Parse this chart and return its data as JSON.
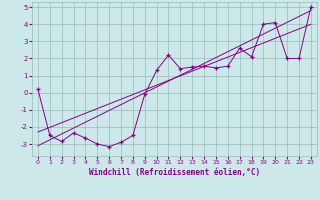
{
  "xlabel": "Windchill (Refroidissement éolien,°C)",
  "xlim": [
    -0.5,
    23.5
  ],
  "ylim": [
    -3.7,
    5.3
  ],
  "yticks": [
    -3,
    -2,
    -1,
    0,
    1,
    2,
    3,
    4,
    5
  ],
  "xticks": [
    0,
    1,
    2,
    3,
    4,
    5,
    6,
    7,
    8,
    9,
    10,
    11,
    12,
    13,
    14,
    15,
    16,
    17,
    18,
    19,
    20,
    21,
    22,
    23
  ],
  "background_color": "#cce8e8",
  "line_color": "#880088",
  "grid_color": "#99bbbb",
  "line1_x": [
    0,
    1,
    2,
    3,
    4,
    5,
    6,
    7,
    8,
    9,
    10,
    11,
    12,
    13,
    14,
    15,
    16,
    17,
    18,
    19,
    20,
    21,
    22,
    23
  ],
  "line1_y": [
    0.2,
    -2.5,
    -2.85,
    -2.35,
    -2.65,
    -3.0,
    -3.15,
    -2.9,
    -2.5,
    -0.1,
    1.3,
    2.2,
    1.4,
    1.5,
    1.55,
    1.45,
    1.55,
    2.6,
    2.1,
    4.0,
    4.1,
    2.0,
    2.0,
    5.0
  ],
  "line2_x": [
    0,
    23
  ],
  "line2_y": [
    -3.1,
    4.8
  ],
  "line3_x": [
    0,
    23
  ],
  "line3_y": [
    -2.3,
    4.0
  ]
}
